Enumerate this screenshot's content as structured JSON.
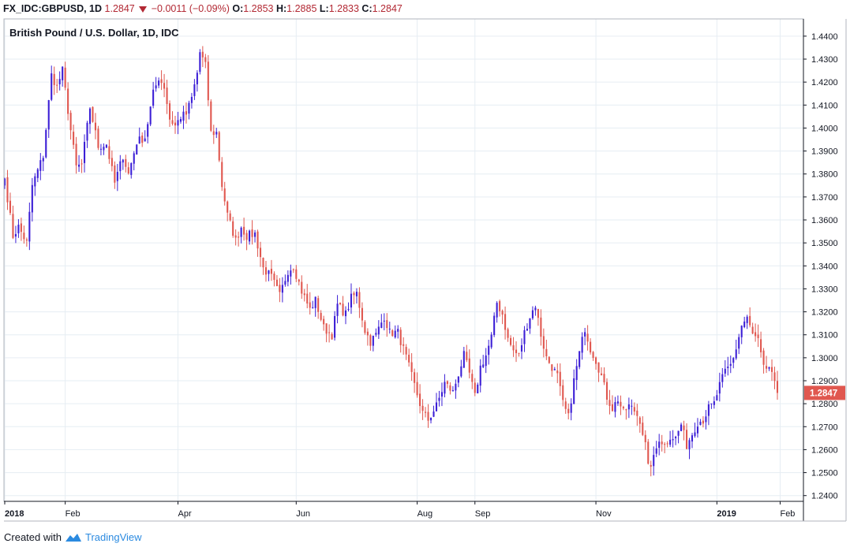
{
  "header": {
    "symbol": "FX_IDC:GBPUSD, 1D",
    "last": "1.2847",
    "change": "−0.0011 (−0.09%)",
    "open_label": "O:",
    "open": "1.2853",
    "high_label": "H:",
    "high": "1.2885",
    "low_label": "L:",
    "low": "1.2833",
    "close_label": "C:",
    "close": "1.2847"
  },
  "footer": {
    "created_with": "Created with",
    "brand": "TradingView"
  },
  "colors": {
    "up": "#3c1fd6",
    "down": "#e0574f",
    "grid": "#e6edf3",
    "axis": "#131722",
    "price_label_bg": "#e0574f"
  },
  "chart_data": {
    "type": "candlestick",
    "title": "British Pound / U.S. Dollar, 1D, IDC",
    "ylim": [
      1.2375,
      1.4475
    ],
    "y_ticks": [
      "1.2400",
      "1.2500",
      "1.2600",
      "1.2700",
      "1.2800",
      "1.2900",
      "1.3000",
      "1.3100",
      "1.3200",
      "1.3300",
      "1.3400",
      "1.3500",
      "1.3600",
      "1.3700",
      "1.3800",
      "1.3900",
      "1.4000",
      "1.4100",
      "1.4200",
      "1.4300",
      "1.4400"
    ],
    "x_labels": [
      {
        "label": "2018",
        "bold": true,
        "index": 0
      },
      {
        "label": "Feb",
        "bold": false,
        "index": 22
      },
      {
        "label": "Apr",
        "bold": false,
        "index": 63
      },
      {
        "label": "Jun",
        "bold": false,
        "index": 106
      },
      {
        "label": "Aug",
        "bold": false,
        "index": 150
      },
      {
        "label": "Sep",
        "bold": false,
        "index": 171
      },
      {
        "label": "Nov",
        "bold": false,
        "index": 215
      },
      {
        "label": "2019",
        "bold": true,
        "index": 259
      },
      {
        "label": "Feb",
        "bold": false,
        "index": 282
      }
    ],
    "last_price": "1.2847",
    "anchors": [
      [
        0,
        1.378
      ],
      [
        3,
        1.353
      ],
      [
        5,
        1.357
      ],
      [
        8,
        1.35
      ],
      [
        10,
        1.375
      ],
      [
        14,
        1.388
      ],
      [
        17,
        1.423
      ],
      [
        19,
        1.418
      ],
      [
        21,
        1.425
      ],
      [
        24,
        1.399
      ],
      [
        26,
        1.383
      ],
      [
        28,
        1.384
      ],
      [
        31,
        1.409
      ],
      [
        34,
        1.392
      ],
      [
        37,
        1.393
      ],
      [
        40,
        1.376
      ],
      [
        43,
        1.388
      ],
      [
        45,
        1.38
      ],
      [
        48,
        1.394
      ],
      [
        51,
        1.396
      ],
      [
        54,
        1.415
      ],
      [
        56,
        1.422
      ],
      [
        58,
        1.418
      ],
      [
        60,
        1.404
      ],
      [
        62,
        1.401
      ],
      [
        64,
        1.405
      ],
      [
        66,
        1.406
      ],
      [
        68,
        1.413
      ],
      [
        70,
        1.424
      ],
      [
        71,
        1.433
      ],
      [
        73,
        1.427
      ],
      [
        75,
        1.398
      ],
      [
        77,
        1.398
      ],
      [
        79,
        1.375
      ],
      [
        81,
        1.362
      ],
      [
        84,
        1.351
      ],
      [
        86,
        1.357
      ],
      [
        88,
        1.353
      ],
      [
        91,
        1.354
      ],
      [
        94,
        1.339
      ],
      [
        97,
        1.335
      ],
      [
        100,
        1.327
      ],
      [
        103,
        1.338
      ],
      [
        105,
        1.34
      ],
      [
        108,
        1.329
      ],
      [
        111,
        1.321
      ],
      [
        113,
        1.325
      ],
      [
        116,
        1.313
      ],
      [
        119,
        1.31
      ],
      [
        121,
        1.323
      ],
      [
        124,
        1.319
      ],
      [
        126,
        1.326
      ],
      [
        128,
        1.328
      ],
      [
        131,
        1.312
      ],
      [
        133,
        1.307
      ],
      [
        135,
        1.31
      ],
      [
        138,
        1.318
      ],
      [
        140,
        1.311
      ],
      [
        143,
        1.311
      ],
      [
        146,
        1.3
      ],
      [
        149,
        1.288
      ],
      [
        152,
        1.276
      ],
      [
        154,
        1.273
      ],
      [
        157,
        1.279
      ],
      [
        160,
        1.289
      ],
      [
        163,
        1.285
      ],
      [
        165,
        1.293
      ],
      [
        167,
        1.301
      ],
      [
        169,
        1.293
      ],
      [
        171,
        1.283
      ],
      [
        173,
        1.296
      ],
      [
        175,
        1.301
      ],
      [
        177,
        1.309
      ],
      [
        179,
        1.324
      ],
      [
        181,
        1.319
      ],
      [
        183,
        1.308
      ],
      [
        185,
        1.303
      ],
      [
        187,
        1.301
      ],
      [
        189,
        1.311
      ],
      [
        191,
        1.318
      ],
      [
        193,
        1.323
      ],
      [
        195,
        1.31
      ],
      [
        197,
        1.3
      ],
      [
        199,
        1.296
      ],
      [
        201,
        1.292
      ],
      [
        203,
        1.28
      ],
      [
        205,
        1.274
      ],
      [
        207,
        1.29
      ],
      [
        209,
        1.302
      ],
      [
        211,
        1.313
      ],
      [
        213,
        1.304
      ],
      [
        215,
        1.299
      ],
      [
        217,
        1.292
      ],
      [
        219,
        1.283
      ],
      [
        221,
        1.278
      ],
      [
        223,
        1.282
      ],
      [
        225,
        1.276
      ],
      [
        227,
        1.279
      ],
      [
        229,
        1.277
      ],
      [
        231,
        1.273
      ],
      [
        233,
        1.262
      ],
      [
        234,
        1.252
      ],
      [
        236,
        1.256
      ],
      [
        238,
        1.265
      ],
      [
        240,
        1.262
      ],
      [
        242,
        1.266
      ],
      [
        244,
        1.265
      ],
      [
        246,
        1.271
      ],
      [
        248,
        1.262
      ],
      [
        250,
        1.267
      ],
      [
        252,
        1.272
      ],
      [
        254,
        1.273
      ],
      [
        256,
        1.278
      ],
      [
        258,
        1.28
      ],
      [
        260,
        1.288
      ],
      [
        262,
        1.294
      ],
      [
        264,
        1.297
      ],
      [
        266,
        1.304
      ],
      [
        268,
        1.314
      ],
      [
        270,
        1.317
      ],
      [
        272,
        1.31
      ],
      [
        274,
        1.307
      ],
      [
        276,
        1.295
      ],
      [
        278,
        1.296
      ],
      [
        280,
        1.288
      ],
      [
        281,
        1.2847
      ]
    ]
  }
}
